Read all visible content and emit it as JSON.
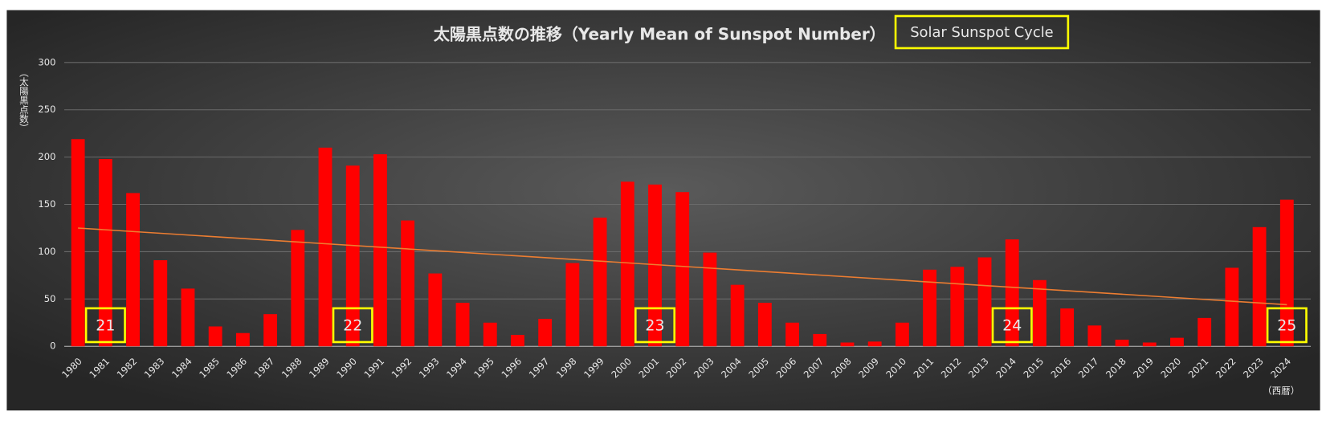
{
  "chart_data": {
    "type": "bar",
    "title": "太陽黒点数の推移（Yearly Mean of Sunspot Number）",
    "badge": "Solar Sunspot Cycle",
    "y_label": "（太陽黒点数）",
    "x_label": "（西暦）",
    "categories": [
      "1980",
      "1981",
      "1982",
      "1983",
      "1984",
      "1985",
      "1986",
      "1987",
      "1988",
      "1989",
      "1990",
      "1991",
      "1992",
      "1993",
      "1994",
      "1995",
      "1996",
      "1997",
      "1998",
      "1999",
      "2000",
      "2001",
      "2002",
      "2003",
      "2004",
      "2005",
      "2006",
      "2007",
      "2008",
      "2009",
      "2010",
      "2011",
      "2012",
      "2013",
      "2014",
      "2015",
      "2016",
      "2017",
      "2018",
      "2019",
      "2020",
      "2021",
      "2022",
      "2023",
      "2024"
    ],
    "values": [
      219,
      198,
      162,
      91,
      61,
      21,
      14,
      34,
      123,
      210,
      191,
      203,
      133,
      77,
      46,
      25,
      12,
      29,
      88,
      136,
      174,
      171,
      163,
      99,
      65,
      46,
      25,
      13,
      4,
      5,
      25,
      81,
      84,
      94,
      113,
      70,
      40,
      22,
      7,
      4,
      9,
      30,
      83,
      126,
      155
    ],
    "color": "#ff0000",
    "trend": {
      "color": "#ed7d31",
      "values": [
        125,
        44
      ]
    },
    "annotations": [
      {
        "label": "21",
        "category": "1981"
      },
      {
        "label": "22",
        "category": "1990"
      },
      {
        "label": "23",
        "category": "2001"
      },
      {
        "label": "24",
        "category": "2014"
      },
      {
        "label": "25",
        "category": "2024"
      }
    ],
    "ylim": [
      0,
      300
    ],
    "yticks": [
      0,
      50,
      100,
      150,
      200,
      250,
      300
    ],
    "grid": true
  }
}
